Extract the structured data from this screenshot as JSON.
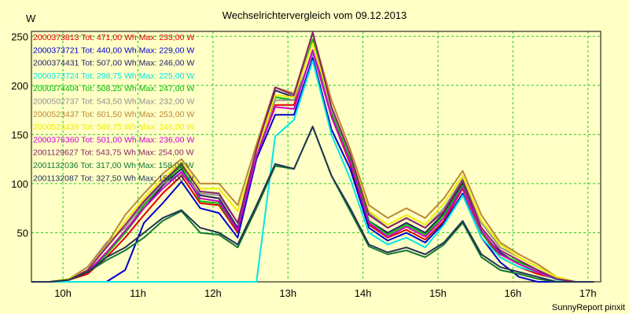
{
  "chart_data": {
    "type": "line",
    "title": "Wechselrichtervergleich vom 09.12.2013",
    "ylabel": "W",
    "xlabel": "",
    "footer": "SunnyReport pinxit",
    "ylim": [
      0,
      255
    ],
    "xlim": [
      9.58,
      17.17
    ],
    "yticks": [
      50,
      100,
      150,
      200,
      250
    ],
    "xticks": [
      {
        "value": 10,
        "label": "10h"
      },
      {
        "value": 11,
        "label": "11h"
      },
      {
        "value": 12,
        "label": "12h"
      },
      {
        "value": 13,
        "label": "13h"
      },
      {
        "value": 14,
        "label": "14h"
      },
      {
        "value": 15,
        "label": "15h"
      },
      {
        "value": 16,
        "label": "16h"
      },
      {
        "value": 17,
        "label": "17h"
      }
    ],
    "grid": true,
    "legend_position": "top-left",
    "x": [
      9.58,
      9.83,
      10.08,
      10.33,
      10.58,
      10.83,
      11.08,
      11.33,
      11.58,
      11.83,
      12.08,
      12.33,
      12.58,
      12.83,
      13.08,
      13.33,
      13.58,
      13.83,
      14.08,
      14.33,
      14.58,
      14.83,
      15.08,
      15.33,
      15.58,
      15.83,
      16.08,
      16.33,
      16.58,
      16.83,
      17.08
    ],
    "series": [
      {
        "name": "2000373813 Tot: 471,00 Wh Max: 233,00 W",
        "color": "#dd0000",
        "values": [
          0,
          0,
          2,
          8,
          25,
          45,
          68,
          90,
          108,
          80,
          78,
          50,
          128,
          180,
          180,
          235,
          168,
          120,
          58,
          45,
          53,
          43,
          62,
          95,
          50,
          25,
          15,
          8,
          3,
          0,
          0
        ]
      },
      {
        "name": "2000373721 Tot: 440,00 Wh Max: 229,00 W",
        "color": "#0000cc",
        "values": [
          0,
          0,
          0,
          0,
          0,
          12,
          60,
          80,
          102,
          75,
          70,
          45,
          125,
          170,
          170,
          228,
          155,
          115,
          55,
          42,
          50,
          40,
          60,
          90,
          45,
          20,
          5,
          0,
          0,
          0,
          0
        ]
      },
      {
        "name": "2000374431 Tot: 507,00 Wh Max: 246,00 W",
        "color": "#222266",
        "values": [
          0,
          0,
          2,
          10,
          28,
          50,
          75,
          98,
          115,
          88,
          85,
          55,
          130,
          195,
          188,
          245,
          170,
          125,
          62,
          50,
          60,
          50,
          70,
          100,
          50,
          30,
          18,
          10,
          3,
          0,
          0
        ]
      },
      {
        "name": "2000373724 Tot: 298,75 Wh Max: 225,00 W",
        "color": "#00e6e6",
        "values": [
          0,
          0,
          0,
          0,
          0,
          0,
          0,
          0,
          0,
          0,
          0,
          0,
          0,
          148,
          165,
          225,
          150,
          105,
          50,
          38,
          45,
          35,
          58,
          88,
          45,
          25,
          15,
          10,
          2,
          0,
          0
        ]
      },
      {
        "name": "2000374404 Tot: 508,25 Wh Max: 247,00 W",
        "color": "#00bb00",
        "values": [
          0,
          0,
          2,
          10,
          28,
          50,
          78,
          100,
          118,
          82,
          80,
          52,
          132,
          188,
          185,
          247,
          172,
          125,
          62,
          48,
          58,
          48,
          68,
          98,
          50,
          28,
          20,
          12,
          3,
          0,
          0
        ]
      },
      {
        "name": "2000502737 Tot: 543,50 Wh Max: 232,00 W",
        "color": "#909090",
        "values": [
          0,
          0,
          3,
          15,
          40,
          55,
          80,
          100,
          110,
          90,
          88,
          60,
          135,
          185,
          185,
          232,
          175,
          130,
          70,
          55,
          65,
          55,
          75,
          105,
          60,
          35,
          25,
          15,
          5,
          0,
          0
        ]
      },
      {
        "name": "2000523437 Tot: 601,50 Wh Max: 253,00 W",
        "color": "#bb8833",
        "values": [
          0,
          0,
          3,
          15,
          38,
          68,
          90,
          110,
          125,
          100,
          100,
          78,
          140,
          198,
          192,
          253,
          185,
          135,
          78,
          65,
          75,
          65,
          85,
          113,
          68,
          40,
          28,
          18,
          5,
          0,
          0
        ]
      },
      {
        "name": "2000523439 Tot: 546,75 Wh Max: 246,00 W",
        "color": "#eeee00",
        "values": [
          0,
          0,
          3,
          12,
          35,
          62,
          85,
          105,
          122,
          95,
          95,
          72,
          132,
          190,
          188,
          243,
          178,
          130,
          72,
          58,
          68,
          58,
          80,
          108,
          62,
          38,
          25,
          15,
          5,
          0,
          0
        ]
      },
      {
        "name": "2000376360 Tot: 501,00 Wh Max: 236,00 W",
        "color": "#cc00cc",
        "values": [
          0,
          0,
          2,
          10,
          30,
          52,
          75,
          95,
          112,
          85,
          82,
          52,
          128,
          178,
          176,
          236,
          168,
          122,
          60,
          46,
          56,
          46,
          65,
          96,
          52,
          28,
          18,
          10,
          3,
          0,
          0
        ]
      },
      {
        "name": "2001129627 Tot: 543,75 Wh Max: 254,00 W",
        "color": "#882266",
        "values": [
          0,
          0,
          2,
          12,
          35,
          58,
          82,
          102,
          120,
          92,
          90,
          60,
          135,
          198,
          190,
          254,
          178,
          130,
          68,
          55,
          65,
          55,
          72,
          103,
          55,
          32,
          22,
          12,
          3,
          0,
          0
        ]
      },
      {
        "name": "2001132036 Tot: 317,00 Wh Max: 158,00 W",
        "color": "#117733",
        "values": [
          0,
          0,
          2,
          10,
          22,
          32,
          45,
          62,
          72,
          50,
          48,
          35,
          75,
          118,
          115,
          158,
          108,
          72,
          36,
          28,
          32,
          25,
          38,
          60,
          25,
          12,
          8,
          3,
          0,
          0,
          0
        ]
      },
      {
        "name": "2001132087 Tot: 327,50 Wh Max: 158,00 W",
        "color": "#223355",
        "values": [
          0,
          0,
          2,
          10,
          25,
          35,
          50,
          65,
          73,
          55,
          50,
          38,
          78,
          120,
          115,
          158,
          108,
          75,
          38,
          30,
          35,
          28,
          40,
          62,
          28,
          15,
          10,
          5,
          0,
          0,
          0
        ]
      }
    ]
  }
}
